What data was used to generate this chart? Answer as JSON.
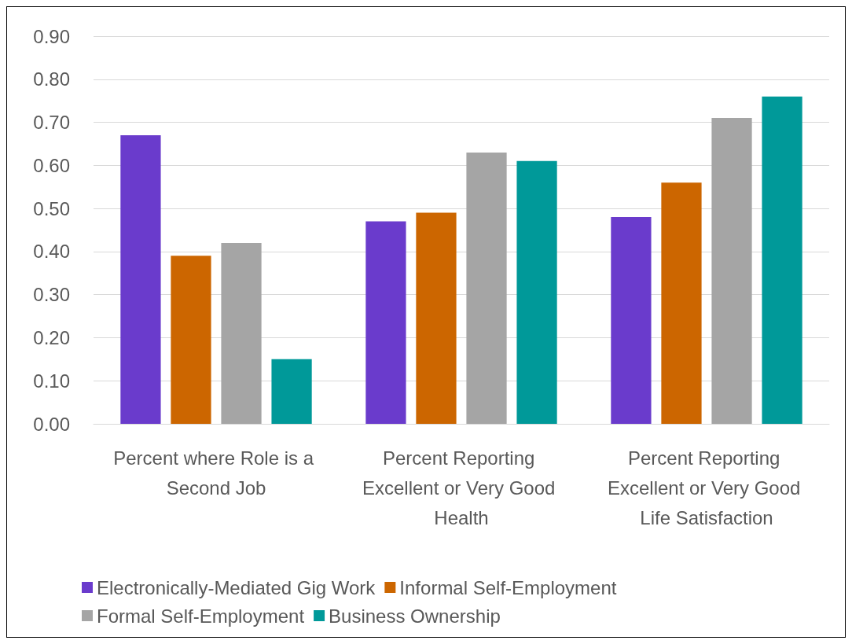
{
  "chart_data": {
    "type": "bar",
    "categories": [
      "Percent where Role is a Second Job",
      "Percent Reporting Excellent or Very Good Health",
      "Percent Reporting Excellent or Very Good Life Satisfaction"
    ],
    "series": [
      {
        "name": "Electronically-Mediated Gig Work",
        "color": "#6a3bcc",
        "values": [
          0.67,
          0.47,
          0.48
        ]
      },
      {
        "name": "Informal Self-Employment",
        "color": "#cc6600",
        "values": [
          0.39,
          0.49,
          0.56
        ]
      },
      {
        "name": "Formal Self-Employment",
        "color": "#a5a5a5",
        "values": [
          0.42,
          0.63,
          0.71
        ]
      },
      {
        "name": "Business Ownership",
        "color": "#009999",
        "values": [
          0.15,
          0.61,
          0.76
        ]
      }
    ],
    "ylim": [
      0,
      0.9
    ],
    "yticks": [
      {
        "value": 0,
        "label": "0.00"
      },
      {
        "value": 0.1,
        "label": "0.10"
      },
      {
        "value": 0.2,
        "label": "0.20"
      },
      {
        "value": 0.3,
        "label": "0.30"
      },
      {
        "value": 0.4,
        "label": "0.40"
      },
      {
        "value": 0.5,
        "label": "0.50"
      },
      {
        "value": 0.6,
        "label": "0.60"
      },
      {
        "value": 0.7,
        "label": "0.70"
      },
      {
        "value": 0.8,
        "label": "0.80"
      },
      {
        "value": 0.9,
        "label": "0.90"
      }
    ],
    "grid": "y",
    "legend": "bottom"
  }
}
